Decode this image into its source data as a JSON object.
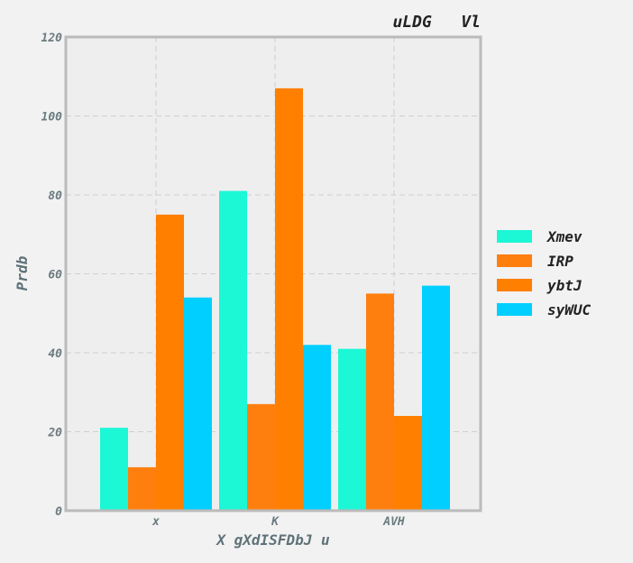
{
  "chart_data": {
    "type": "bar",
    "title": "uLDG   Vl",
    "xlabel": "X gXdISFDbJ u",
    "ylabel": "Prdb",
    "categories": [
      "x",
      "K",
      "AVH"
    ],
    "ylim": [
      0,
      120
    ],
    "yticks": [
      0,
      20,
      40,
      60,
      80,
      100,
      120
    ],
    "grid": true,
    "legend_position": "right",
    "series": [
      {
        "name": "Xmev",
        "color": "#1cf7d6",
        "values": [
          21,
          81,
          41
        ]
      },
      {
        "name": "IRP",
        "color": "#ff7f0e",
        "values": [
          11,
          27,
          55
        ]
      },
      {
        "name": "ybtJ",
        "color": "#ff7f00",
        "values": [
          75,
          107,
          24
        ]
      },
      {
        "name": "syWUC",
        "color": "#00cfff",
        "values": [
          54,
          42,
          57
        ]
      }
    ]
  }
}
